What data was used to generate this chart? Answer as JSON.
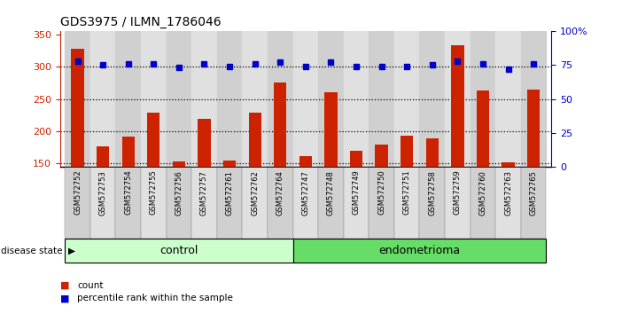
{
  "title": "GDS3975 / ILMN_1786046",
  "samples": [
    "GSM572752",
    "GSM572753",
    "GSM572754",
    "GSM572755",
    "GSM572756",
    "GSM572757",
    "GSM572761",
    "GSM572762",
    "GSM572764",
    "GSM572747",
    "GSM572748",
    "GSM572749",
    "GSM572750",
    "GSM572751",
    "GSM572758",
    "GSM572759",
    "GSM572760",
    "GSM572763",
    "GSM572765"
  ],
  "counts": [
    328,
    176,
    192,
    228,
    153,
    219,
    154,
    228,
    275,
    161,
    260,
    169,
    179,
    193,
    188,
    333,
    263,
    151,
    264
  ],
  "percentiles": [
    78,
    75,
    76,
    76,
    73,
    76,
    74,
    76,
    77,
    74,
    77,
    74,
    74,
    74,
    75,
    78,
    76,
    72,
    76
  ],
  "control_count": 9,
  "endometrioma_count": 10,
  "bar_color": "#cc2200",
  "dot_color": "#0000cc",
  "control_label": "control",
  "endometrioma_label": "endometrioma",
  "disease_state_label": "disease state",
  "legend_count": "count",
  "legend_pct": "percentile rank within the sample",
  "ylim_left": [
    145,
    355
  ],
  "ylim_right": [
    0,
    100
  ],
  "yticks_left": [
    150,
    200,
    250,
    300,
    350
  ],
  "yticks_right": [
    0,
    25,
    50,
    75,
    100
  ],
  "ytick_right_labels": [
    "0",
    "25",
    "50",
    "75",
    "100%"
  ],
  "bar_width": 0.5,
  "dot_marker_size": 5,
  "col_bg_even": "#d0d0d0",
  "col_bg_odd": "#e0e0e0",
  "control_color": "#ccffcc",
  "endometrioma_color": "#66dd66"
}
